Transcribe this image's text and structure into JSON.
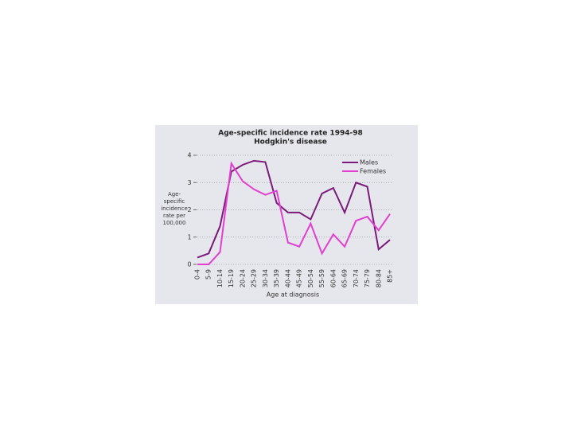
{
  "chart_data": {
    "type": "line",
    "title": "Age-specific incidence rate 1994-98",
    "subtitle": "Hodgkin's disease",
    "y_label": "Age-specific incidence rate per 100,000",
    "x_label": "Age at diagnosis",
    "categories": [
      "0-4",
      "5-9",
      "10-14",
      "15-19",
      "20-24",
      "25-29",
      "30-34",
      "35-39",
      "40-44",
      "45-49",
      "50-54",
      "55-59",
      "60-64",
      "65-69",
      "70-74",
      "75-79",
      "80-84",
      "85+"
    ],
    "series": [
      {
        "name": "Males",
        "color": "#7b1a7b",
        "values": [
          0.25,
          0.4,
          1.4,
          3.4,
          3.65,
          3.8,
          3.75,
          2.25,
          1.9,
          1.9,
          1.65,
          2.6,
          2.8,
          1.9,
          3.0,
          2.85,
          0.55,
          0.9
        ]
      },
      {
        "name": "Females",
        "color": "#e23ed2",
        "values": [
          0,
          0,
          0.45,
          3.7,
          3.05,
          2.75,
          2.55,
          2.7,
          0.8,
          0.65,
          1.5,
          0.4,
          1.1,
          0.65,
          1.6,
          1.75,
          1.25,
          1.85
        ]
      }
    ],
    "ylim": [
      0,
      4
    ],
    "yticks": [
      0,
      1,
      2,
      3,
      4
    ],
    "grid": true,
    "legend": "top-right"
  }
}
